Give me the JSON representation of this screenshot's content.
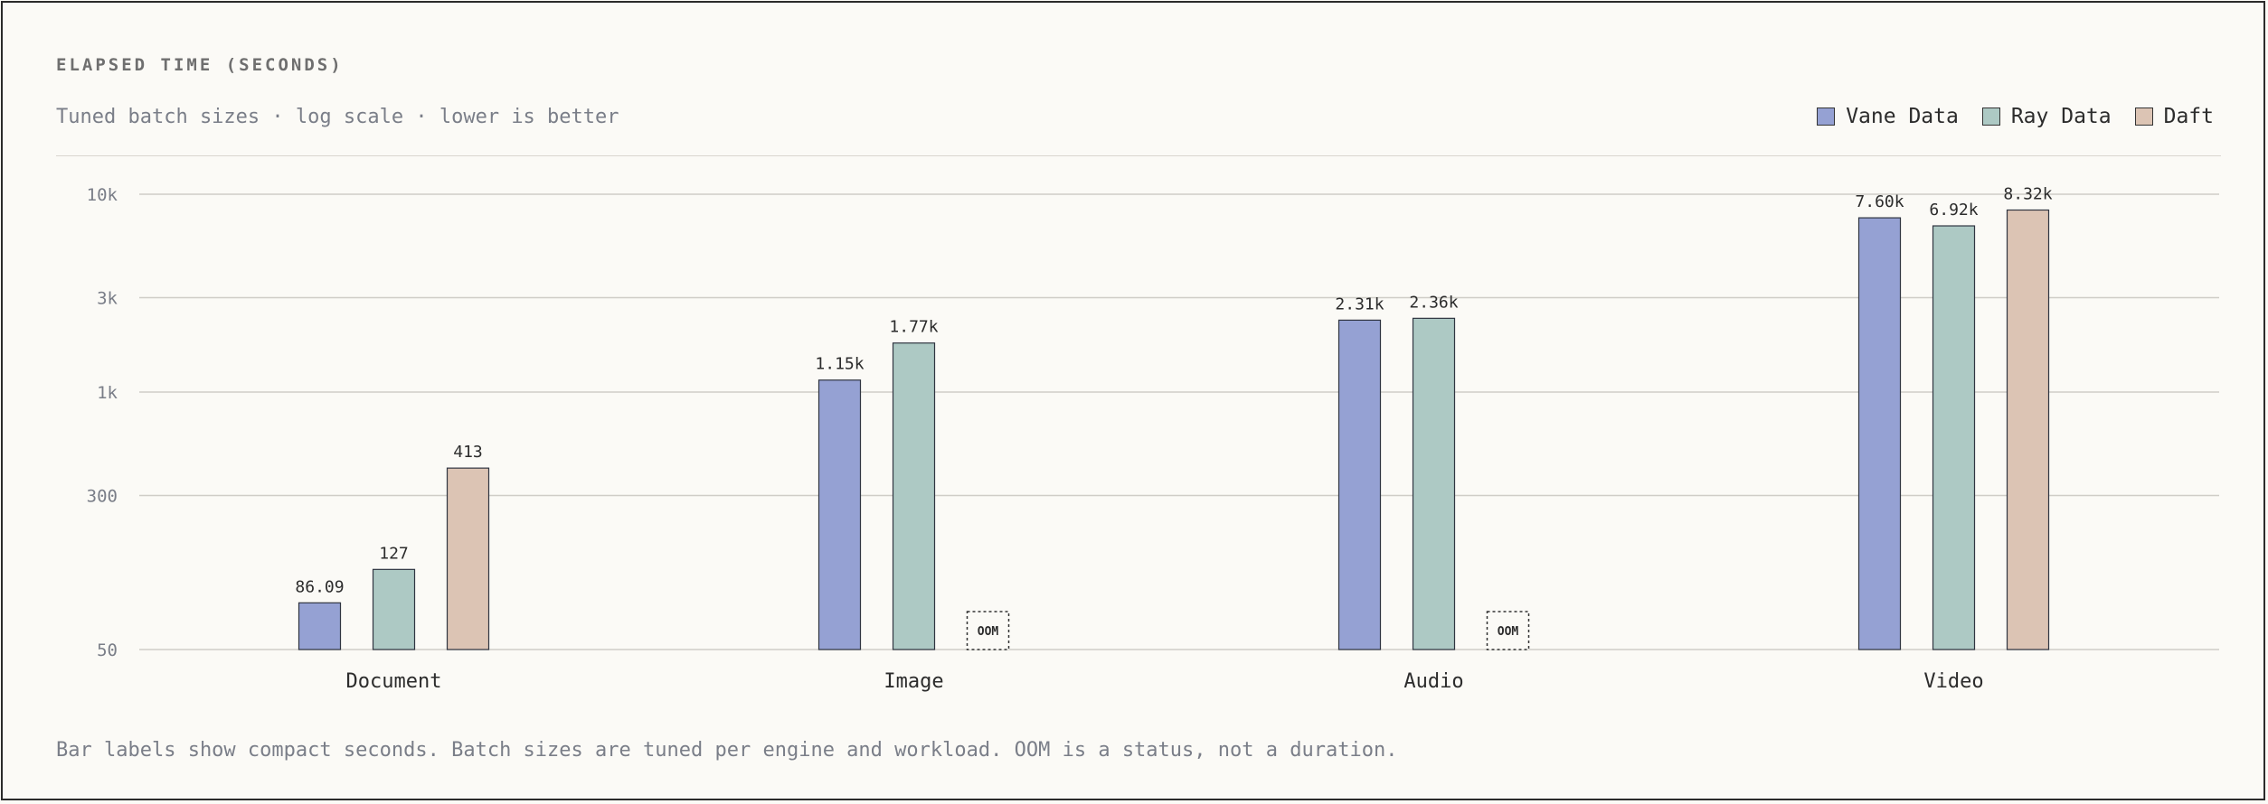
{
  "chart_data": {
    "type": "bar",
    "title": "ELAPSED TIME (SECONDS)",
    "subtitle": "Tuned batch sizes · log scale · lower is better",
    "ylabel": "",
    "xlabel": "",
    "yscale": "log",
    "ylim": [
      50,
      10000
    ],
    "yticks": [
      {
        "value": 50,
        "label": "50"
      },
      {
        "value": 300,
        "label": "300"
      },
      {
        "value": 1000,
        "label": "1k"
      },
      {
        "value": 3000,
        "label": "3k"
      },
      {
        "value": 10000,
        "label": "10k"
      }
    ],
    "grid": true,
    "legend_position": "top-right",
    "categories": [
      "Document",
      "Image",
      "Audio",
      "Video"
    ],
    "series": [
      {
        "name": "Vane Data",
        "color": "#95a1d3",
        "values": [
          86.09,
          1150,
          2310,
          7600
        ],
        "labels": [
          "86.09",
          "1.15k",
          "2.31k",
          "7.60k"
        ]
      },
      {
        "name": "Ray Data",
        "color": "#adc9c4",
        "values": [
          127,
          1770,
          2360,
          6920
        ],
        "labels": [
          "127",
          "1.77k",
          "2.36k",
          "6.92k"
        ]
      },
      {
        "name": "Daft",
        "color": "#dcc4b4",
        "values": [
          413,
          null,
          null,
          8320
        ],
        "labels": [
          "413",
          "OOM",
          "OOM",
          "8.32k"
        ]
      }
    ],
    "footnote": "Bar labels show compact seconds. Batch sizes are tuned per engine and workload. OOM is a status, not a duration."
  }
}
